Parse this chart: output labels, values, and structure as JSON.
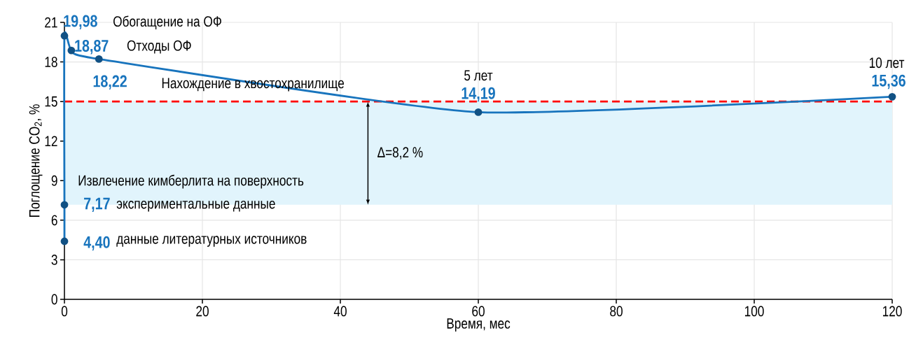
{
  "chart_data": {
    "type": "line",
    "xlabel": "Время, мес",
    "ylabel": "Поглощение CO$_{2}$, %",
    "x": [
      0,
      0,
      0,
      1,
      5,
      60,
      120
    ],
    "series": [
      {
        "color": "#1874bd",
        "values": [
          4.4,
          7.17,
          19.98,
          18.87,
          18.22,
          14.19,
          15.36
        ],
        "value_labels": [
          "4,40",
          "7,17",
          "19,98",
          "18,87",
          "18,22",
          "14,19",
          "15,36"
        ]
      }
    ],
    "xlim": [
      0,
      120
    ],
    "ylim": [
      0,
      21
    ],
    "xticks": [
      0,
      20,
      40,
      60,
      80,
      100,
      120
    ],
    "yticks": [
      0,
      3,
      6,
      9,
      12,
      15,
      18,
      21
    ],
    "grid": true,
    "marker": "circle",
    "line_style": "solid",
    "ref_lines": [
      {
        "axis": "y",
        "value": 15,
        "color": "#ff0000",
        "line_style": "dashed"
      }
    ],
    "bands": [
      {
        "axis": "y",
        "from": 7.17,
        "to": 15,
        "color": "#e1f4fc"
      }
    ],
    "annotations": [
      "Обогащение на ОФ",
      "Отходы ОФ",
      "Нахождение в хвостохранилище",
      "Извлечение кимберлита на поверхность",
      "экспериментальные данные",
      "данные литературных источников",
      "5 лет",
      "10 лет",
      "Δ=8,2 %"
    ]
  }
}
